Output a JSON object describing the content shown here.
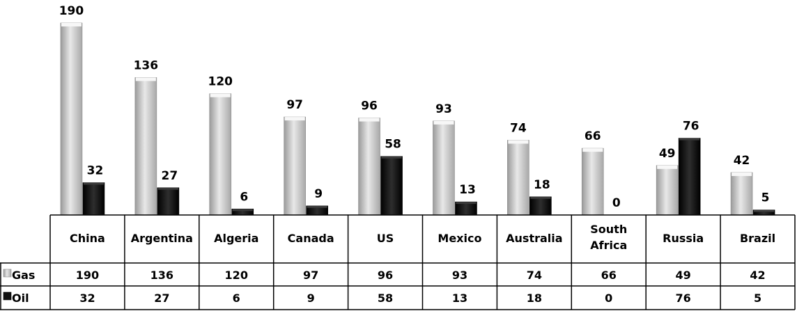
{
  "chart_data": {
    "type": "bar",
    "categories": [
      "China",
      "Argentina",
      "Algeria",
      "Canada",
      "US",
      "Mexico",
      "Australia",
      "South Africa",
      "Russia",
      "Brazil"
    ],
    "series": [
      {
        "name": "Gas",
        "values": [
          190,
          136,
          120,
          97,
          96,
          93,
          74,
          66,
          49,
          42
        ],
        "color": "#c8c8c8"
      },
      {
        "name": "Oil",
        "values": [
          32,
          27,
          6,
          9,
          58,
          13,
          18,
          0,
          76,
          5
        ],
        "color": "#111111"
      }
    ],
    "ylim": [
      0,
      190
    ],
    "grid": false,
    "legend": "data table",
    "data_table": true
  }
}
